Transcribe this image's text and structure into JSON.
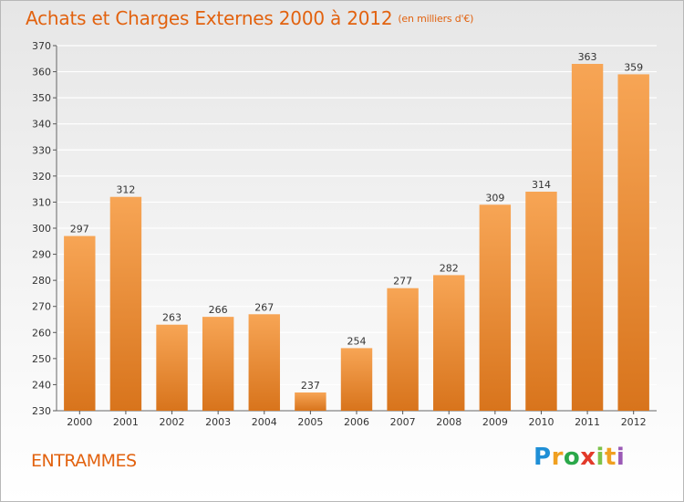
{
  "header": {
    "title": "Achats et Charges Externes 2000 à 2012",
    "subtitle": "(en milliers d'€)"
  },
  "footer": {
    "commune": "ENTRAMMES",
    "logo_text": "Proxiti"
  },
  "colors": {
    "accent": "#e2620f",
    "bar_top": "#f7a555",
    "bar_bottom": "#d8741c",
    "grid": "#ffffff"
  },
  "chart_data": {
    "type": "bar",
    "title": "Achats et Charges Externes 2000 à 2012",
    "subtitle": "(en milliers d'€)",
    "categories": [
      "2000",
      "2001",
      "2002",
      "2003",
      "2004",
      "2005",
      "2006",
      "2007",
      "2008",
      "2009",
      "2010",
      "2011",
      "2012"
    ],
    "values": [
      297,
      312,
      263,
      266,
      267,
      237,
      254,
      277,
      282,
      309,
      314,
      363,
      359
    ],
    "ylim": [
      230,
      370
    ],
    "yticks": [
      230,
      240,
      250,
      260,
      270,
      280,
      290,
      300,
      310,
      320,
      330,
      340,
      350,
      360,
      370
    ],
    "grid": true,
    "xlabel": "",
    "ylabel": ""
  }
}
